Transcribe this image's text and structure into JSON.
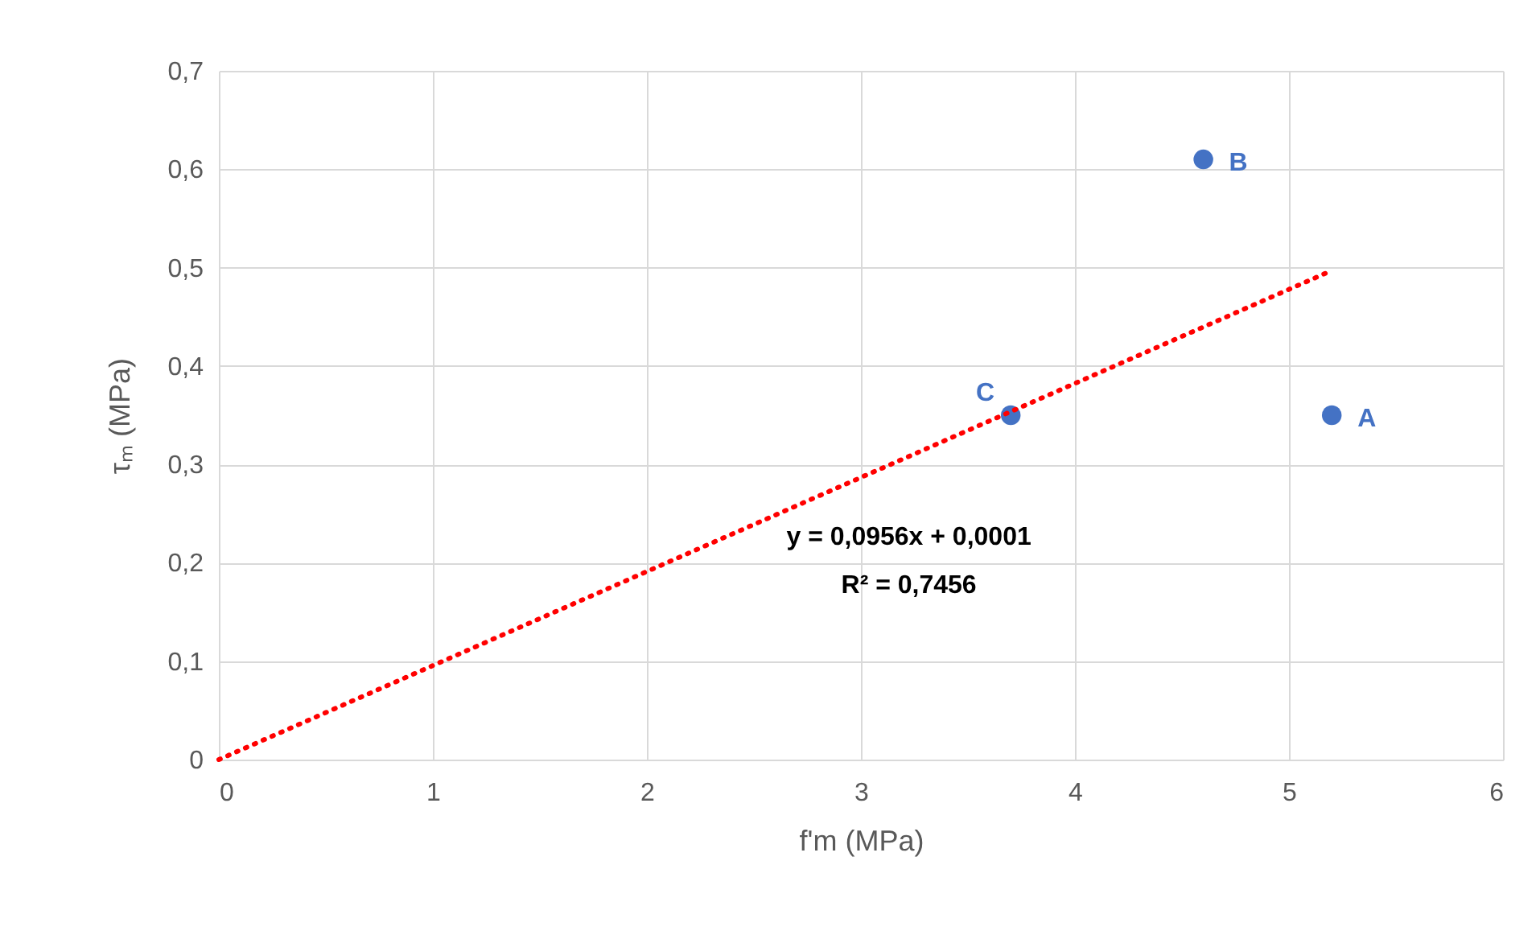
{
  "chart_data": {
    "type": "scatter",
    "xlabel": "f'm (MPa)",
    "ylabel": "τₘ (MPa)",
    "series": [
      {
        "type": "scatter",
        "color": "#4472c4",
        "marker": "circle",
        "x": [
          5.2,
          4.6,
          3.7
        ],
        "values": [
          0.35,
          0.61,
          0.35
        ]
      },
      {
        "type": "line",
        "color": "#ff0000",
        "line_style": "dotted",
        "marker": "none",
        "x": [
          0,
          5.2
        ],
        "values": [
          0,
          0.497
        ]
      }
    ],
    "annotations": [
      {
        "text": "A",
        "x": 5.2,
        "y": 0.35
      },
      {
        "text": "B",
        "x": 4.6,
        "y": 0.61
      },
      {
        "text": "C",
        "x": 3.7,
        "y": 0.35
      },
      "y = 0,0956x + 0,0001",
      "R² = 0,7456"
    ],
    "xlim": [
      0,
      6
    ],
    "xticks": [
      0,
      1,
      2,
      3,
      4,
      5,
      6
    ],
    "ylim": [
      0,
      0.7
    ],
    "yticks": [
      0,
      {
        "value": 0.1,
        "label": "0,1"
      },
      {
        "value": 0.2,
        "label": "0,2"
      },
      {
        "value": 0.3,
        "label": "0,3"
      },
      {
        "value": 0.4,
        "label": "0,4"
      },
      {
        "value": 0.5,
        "label": "0,5"
      },
      {
        "value": 0.6,
        "label": "0,6"
      },
      {
        "value": 0.7,
        "label": "0,7"
      }
    ],
    "grid": true
  }
}
